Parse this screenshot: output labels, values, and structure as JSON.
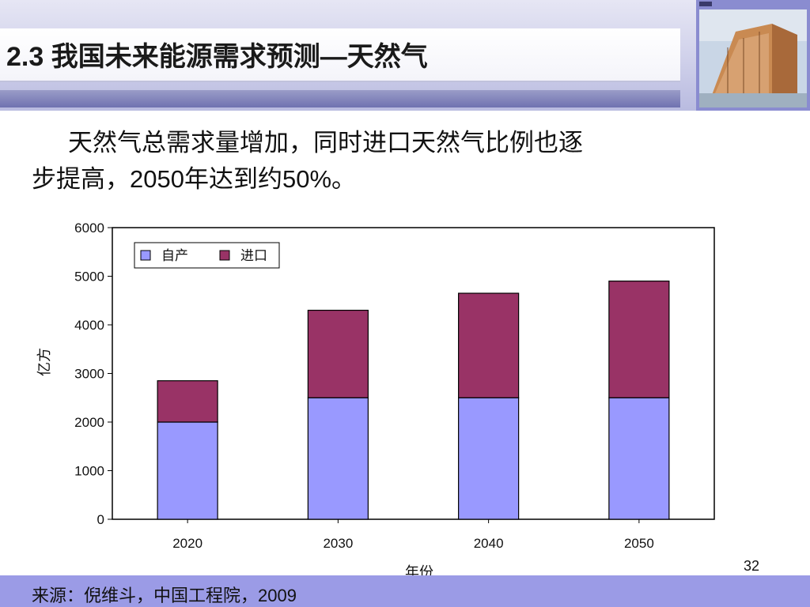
{
  "slide": {
    "title": "2.3 我国未来能源需求预测—天然气",
    "body_line1": "天然气总需求量增加，同时进口天然气比例也逐",
    "body_line2": "步提高，2050年达到约50%。",
    "source": "来源：倪维斗，中国工程院，2009",
    "page_number": "32"
  },
  "chart_data": {
    "type": "bar",
    "stacked": true,
    "categories": [
      "2020",
      "2030",
      "2040",
      "2050"
    ],
    "series": [
      {
        "name": "自产",
        "values": [
          2000,
          2500,
          2500,
          2500
        ],
        "color": "#9999ff"
      },
      {
        "name": "进口",
        "values": [
          850,
          1800,
          2150,
          2400
        ],
        "color": "#993366"
      }
    ],
    "title": "",
    "xlabel": "年份",
    "ylabel": "亿方",
    "ylim": [
      0,
      6000
    ],
    "yticks": [
      0,
      1000,
      2000,
      3000,
      4000,
      5000,
      6000
    ],
    "legend_position": "top-left",
    "grid": false
  }
}
